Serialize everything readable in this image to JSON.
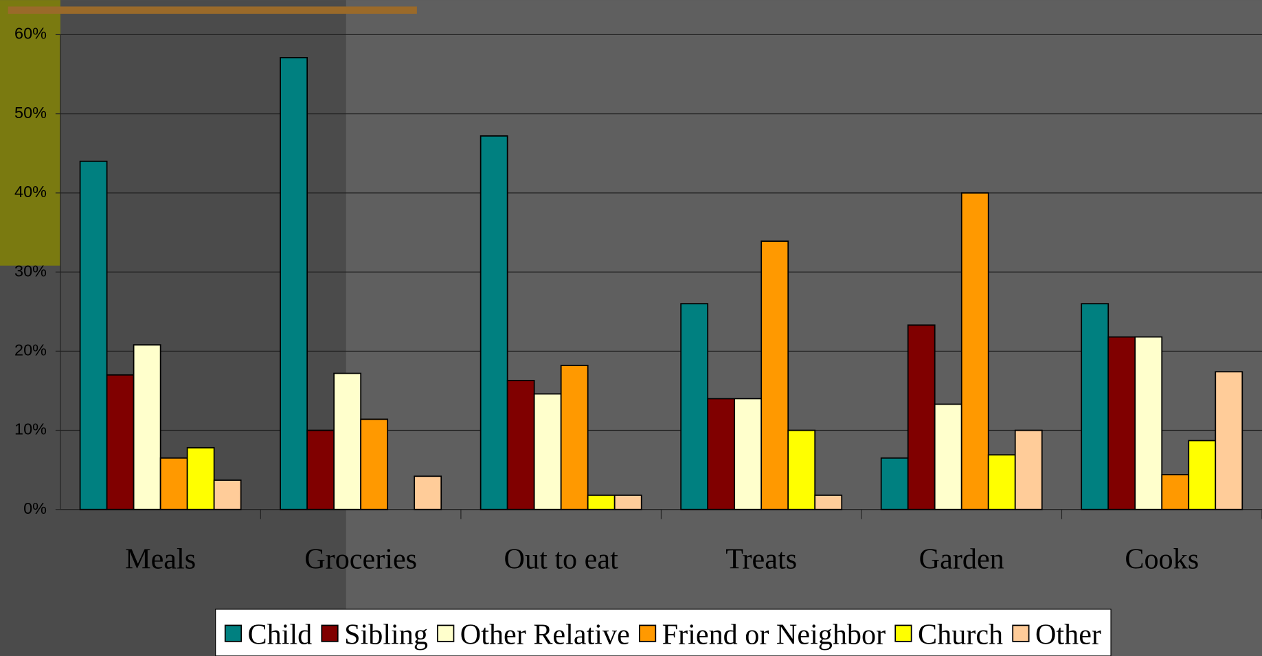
{
  "chart_data": {
    "type": "bar",
    "categories": [
      "Meals",
      "Groceries",
      "Out to eat",
      "Treats",
      "Garden",
      "Cooks"
    ],
    "series": [
      {
        "name": "Child",
        "color": "#008080",
        "values": [
          44,
          57.1,
          47.2,
          26,
          6.5,
          26
        ]
      },
      {
        "name": "Sibling",
        "color": "#800000",
        "values": [
          17,
          10,
          16.3,
          14,
          23.3,
          21.8
        ]
      },
      {
        "name": "Other Relative",
        "color": "#ffffcc",
        "values": [
          20.8,
          17.2,
          14.6,
          14,
          13.3,
          21.8
        ]
      },
      {
        "name": "Friend or Neighbor",
        "color": "#ff9900",
        "values": [
          6.5,
          11.4,
          18.2,
          33.9,
          40,
          4.4
        ]
      },
      {
        "name": "Church",
        "color": "#ffff00",
        "values": [
          7.8,
          0,
          1.8,
          10,
          6.9,
          8.7
        ]
      },
      {
        "name": "Other",
        "color": "#ffcc99",
        "values": [
          3.7,
          4.2,
          1.8,
          1.8,
          10,
          17.4
        ]
      }
    ],
    "ylim": [
      0,
      60
    ],
    "yticks": [
      {
        "value": 0,
        "label": "0%"
      },
      {
        "value": 10,
        "label": "10%"
      },
      {
        "value": 20,
        "label": "20%"
      },
      {
        "value": 30,
        "label": "30%"
      },
      {
        "value": 40,
        "label": "40%"
      },
      {
        "value": 50,
        "label": "50%"
      },
      {
        "value": 60,
        "label": "60%"
      }
    ],
    "grid": true,
    "legend": "bottom"
  }
}
